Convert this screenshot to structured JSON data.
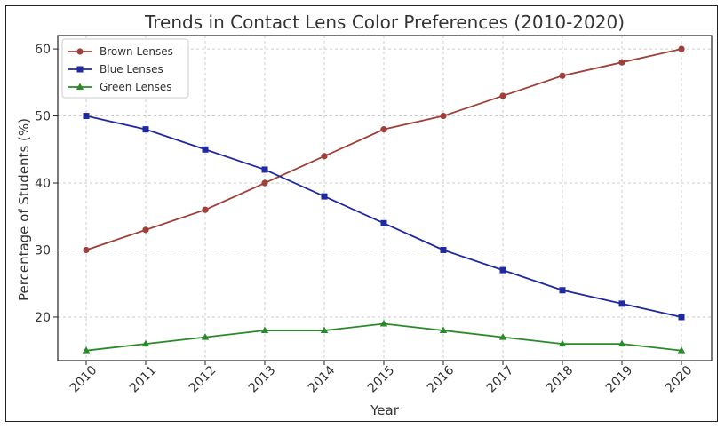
{
  "chart_data": {
    "type": "line",
    "title": "Trends in Contact Lens Color Preferences (2010-2020)",
    "xlabel": "Year",
    "ylabel": "Percentage of Students (%)",
    "x": [
      "2010",
      "2011",
      "2012",
      "2013",
      "2014",
      "2015",
      "2016",
      "2017",
      "2018",
      "2019",
      "2020"
    ],
    "ylim": [
      13.5,
      62
    ],
    "yticks": [
      "20",
      "30",
      "40",
      "50",
      "60"
    ],
    "grid": true,
    "legend_position": "top-left",
    "series": [
      {
        "name": "Brown Lenses",
        "color": "#a0403a",
        "marker": "circle",
        "values": [
          30,
          33,
          36,
          40,
          44,
          48,
          50,
          53,
          56,
          58,
          60
        ]
      },
      {
        "name": "Blue Lenses",
        "color": "#1f2aa0",
        "marker": "square",
        "values": [
          50,
          48,
          45,
          42,
          38,
          34,
          30,
          27,
          24,
          22,
          20
        ]
      },
      {
        "name": "Green Lenses",
        "color": "#2a8a2a",
        "marker": "triangle",
        "values": [
          15,
          16,
          17,
          18,
          18,
          19,
          18,
          17,
          16,
          16,
          15
        ]
      }
    ]
  }
}
